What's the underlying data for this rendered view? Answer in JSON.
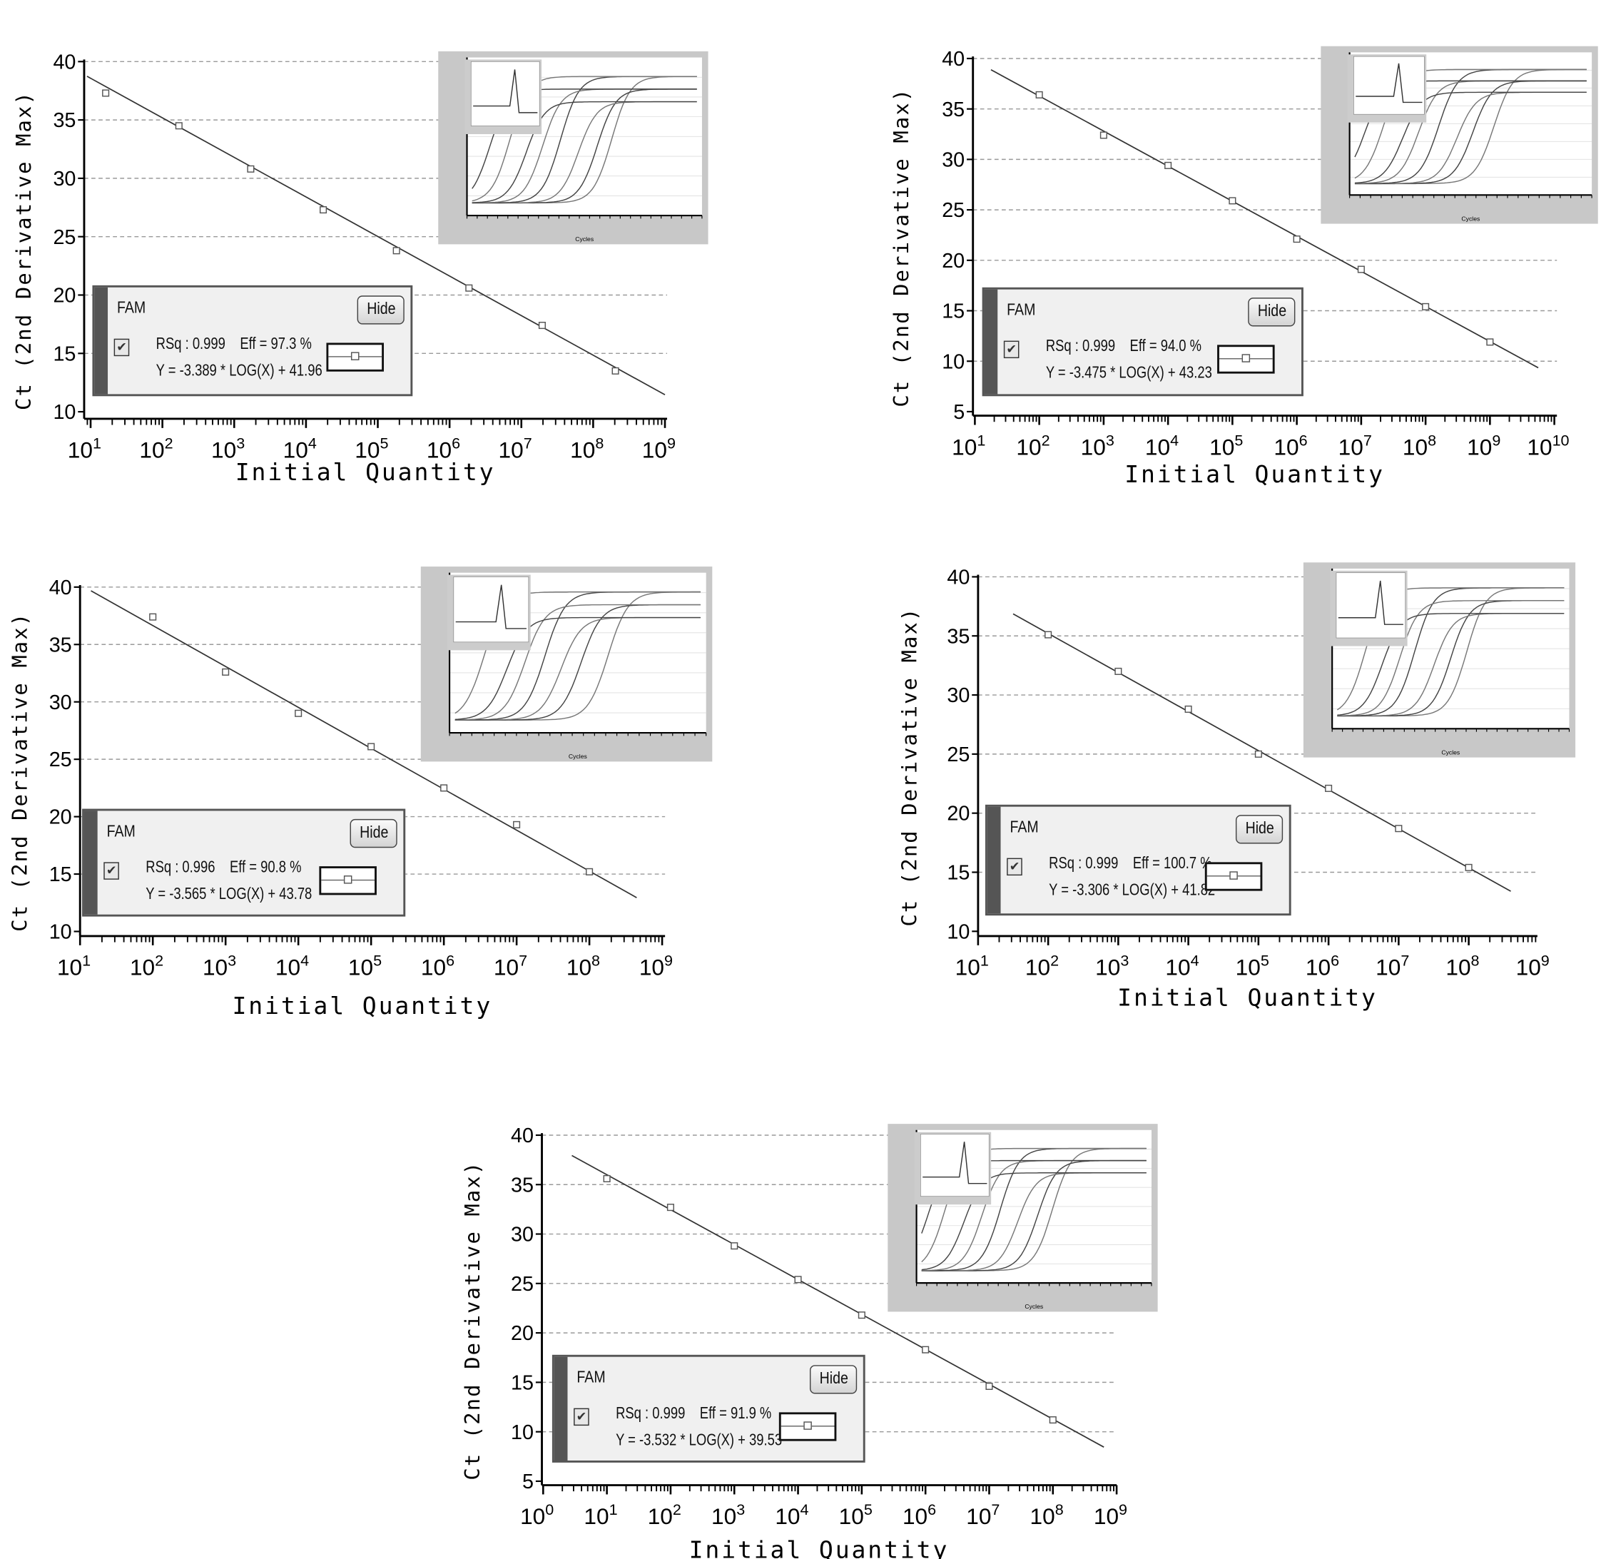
{
  "axis_labels": {
    "x": "Initial Quantity",
    "y": "Ct (2nd Derivative Max)"
  },
  "inset_xlabel": "Cycles",
  "colors": {
    "line": "#333333",
    "grid": "#999999",
    "inset_frame": "#c8c8c8",
    "legend_bg": "#f0f0f0"
  },
  "legend_common": {
    "dye": "FAM",
    "hide_label": "Hide",
    "checked": true
  },
  "chart_data": [
    {
      "type": "scatter",
      "title": "",
      "xlabel": "Initial Quantity",
      "ylabel": "Ct (2nd Derivative Max)",
      "xscale": "log10",
      "xlim_log10": [
        0.91,
        9.03
      ],
      "ylim": [
        9.4,
        40
      ],
      "yticks": [
        10,
        15,
        20,
        25,
        30,
        35,
        40
      ],
      "xtick_exponents": [
        1,
        2,
        3,
        4,
        5,
        6,
        7,
        8,
        9
      ],
      "grid": "horizontal dashed",
      "points": {
        "log10_x": [
          1.21,
          2.23,
          3.23,
          4.24,
          5.26,
          6.27,
          7.29,
          8.31
        ],
        "ct": [
          37.3,
          34.5,
          30.8,
          27.3,
          23.8,
          20.6,
          17.4,
          13.5
        ]
      },
      "fit_range_log10": [
        0.95,
        9.0
      ],
      "legend": {
        "rsq": "RSq : 0.999",
        "eff": "Eff = 97.3 %",
        "equation": "Y = -3.389 * LOG(X) + 41.96",
        "slope": -3.389,
        "intercept": 41.96
      }
    },
    {
      "type": "scatter",
      "title": "",
      "xlabel": "Initial Quantity",
      "ylabel": "Ct (2nd Derivative Max)",
      "xscale": "log10",
      "xlim_log10": [
        0.97,
        10.04
      ],
      "ylim": [
        4.6,
        40
      ],
      "yticks": [
        5,
        10,
        15,
        20,
        25,
        30,
        35,
        40
      ],
      "xtick_exponents": [
        1,
        2,
        3,
        4,
        5,
        6,
        7,
        8,
        9,
        10
      ],
      "grid": "horizontal dashed",
      "points": {
        "log10_x": [
          2,
          3,
          4,
          5,
          6,
          7,
          8,
          9
        ],
        "ct": [
          36.4,
          32.4,
          29.4,
          25.9,
          22.1,
          19.1,
          15.4,
          11.9
        ]
      },
      "fit_range_log10": [
        1.25,
        9.75
      ],
      "legend": {
        "rsq": "RSq : 0.999",
        "eff": "Eff = 94.0 %",
        "equation": "Y = -3.475 * LOG(X) + 43.23",
        "slope": -3.475,
        "intercept": 43.23
      }
    },
    {
      "type": "scatter",
      "title": "",
      "xlabel": "Initial Quantity",
      "ylabel": "Ct (2nd Derivative Max)",
      "xscale": "log10",
      "xlim_log10": [
        1.0,
        9.04
      ],
      "ylim": [
        9.6,
        40
      ],
      "yticks": [
        10,
        15,
        20,
        25,
        30,
        35,
        40
      ],
      "xtick_exponents": [
        1,
        2,
        3,
        4,
        5,
        6,
        7,
        8,
        9
      ],
      "grid": "horizontal dashed",
      "points": {
        "log10_x": [
          2,
          3,
          4,
          5,
          6,
          7,
          8
        ],
        "ct": [
          37.4,
          32.6,
          29.0,
          26.1,
          22.5,
          19.3,
          15.2
        ]
      },
      "fit_range_log10": [
        1.15,
        8.65
      ],
      "legend": {
        "rsq": "RSq : 0.996",
        "eff": "Eff = 90.8 %",
        "equation": "Y = -3.565 * LOG(X) + 43.78",
        "slope": -3.565,
        "intercept": 43.78
      }
    },
    {
      "type": "scatter",
      "title": "",
      "xlabel": "Initial Quantity",
      "ylabel": "Ct (2nd Derivative Max)",
      "xscale": "log10",
      "xlim_log10": [
        1.0,
        8.98
      ],
      "ylim": [
        9.6,
        40
      ],
      "yticks": [
        10,
        15,
        20,
        25,
        30,
        35,
        40
      ],
      "xtick_exponents": [
        1,
        2,
        3,
        4,
        5,
        6,
        7,
        8,
        9
      ],
      "grid": "horizontal dashed",
      "points": {
        "log10_x": [
          2,
          3,
          4,
          5,
          6,
          7,
          8
        ],
        "ct": [
          35.1,
          32.0,
          28.8,
          25.0,
          22.1,
          18.7,
          15.4
        ]
      },
      "fit_range_log10": [
        1.5,
        8.6
      ],
      "legend": {
        "rsq": "RSq : 0.999",
        "eff": "Eff = 100.7 %",
        "equation": "Y = -3.306 * LOG(X) + 41.82",
        "slope": -3.306,
        "intercept": 41.82
      }
    },
    {
      "type": "scatter",
      "title": "",
      "xlabel": "Initial Quantity",
      "ylabel": "Ct (2nd Derivative Max)",
      "xscale": "log10",
      "xlim_log10": [
        -0.02,
        9.0
      ],
      "ylim": [
        4.6,
        40
      ],
      "yticks": [
        5,
        10,
        15,
        20,
        25,
        30,
        35,
        40
      ],
      "xtick_exponents": [
        0,
        1,
        2,
        3,
        4,
        5,
        6,
        7,
        8,
        9
      ],
      "grid": "horizontal dashed",
      "points": {
        "log10_x": [
          1,
          2,
          3,
          4,
          5,
          6,
          7,
          8
        ],
        "ct": [
          35.6,
          32.7,
          28.8,
          25.4,
          21.8,
          18.3,
          14.6,
          11.2
        ]
      },
      "fit_range_log10": [
        0.45,
        8.8
      ],
      "legend": {
        "rsq": "RSq : 0.999",
        "eff": "Eff = 91.9 %",
        "equation": "Y = -3.532 * LOG(X) + 39.53",
        "slope": -3.532,
        "intercept": 39.53
      }
    }
  ]
}
